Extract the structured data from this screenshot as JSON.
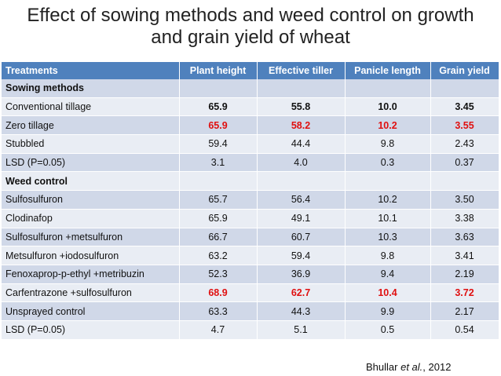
{
  "title_line1": "Effect of sowing methods and weed control on growth",
  "title_line2": "and grain yield of wheat",
  "headers": [
    "Treatments",
    "Plant height",
    "Effective tiller",
    "Panicle length",
    "Grain yield"
  ],
  "rows": [
    {
      "label": "Sowing methods",
      "section": true
    },
    {
      "label": "Conventional tillage",
      "values": [
        "65.9",
        "55.8",
        "10.0",
        "3.45"
      ],
      "style": "bold"
    },
    {
      "label": "Zero tillage",
      "values": [
        "65.9",
        "58.2",
        "10.2",
        "3.55"
      ],
      "style": "red"
    },
    {
      "label": "Stubbled",
      "values": [
        "59.4",
        "44.4",
        "9.8",
        "2.43"
      ],
      "style": ""
    },
    {
      "label": "LSD (P=0.05)",
      "values": [
        "3.1",
        "4.0",
        "0.3",
        "0.37"
      ],
      "style": ""
    },
    {
      "label": "Weed control",
      "section": true
    },
    {
      "label": "Sulfosulfuron",
      "values": [
        "65.7",
        "56.4",
        "10.2",
        "3.50"
      ],
      "style": ""
    },
    {
      "label": "Clodinafop",
      "values": [
        "65.9",
        "49.1",
        "10.1",
        "3.38"
      ],
      "style": ""
    },
    {
      "label": "Sulfosulfuron +metsulfuron",
      "values": [
        "66.7",
        "60.7",
        "10.3",
        "3.63"
      ],
      "style": ""
    },
    {
      "label": "Metsulfuron +iodosulfuron",
      "values": [
        "63.2",
        "59.4",
        "9.8",
        "3.41"
      ],
      "style": ""
    },
    {
      "label": "Fenoxaprop-p-ethyl +metribuzin",
      "values": [
        "52.3",
        "36.9",
        "9.4",
        "2.19"
      ],
      "style": ""
    },
    {
      "label": "Carfentrazone +sulfosulfuron",
      "values": [
        "68.9",
        "62.7",
        "10.4",
        "3.72"
      ],
      "style": "red"
    },
    {
      "label": "Unsprayed control",
      "values": [
        "63.3",
        "44.3",
        "9.9",
        "2.17"
      ],
      "style": ""
    },
    {
      "label": "LSD (P=0.05)",
      "values": [
        "4.7",
        "5.1",
        "0.5",
        "0.54"
      ],
      "style": ""
    }
  ],
  "citation": {
    "author": "Bhullar",
    "etal": "et al.",
    "year": ", 2012"
  }
}
